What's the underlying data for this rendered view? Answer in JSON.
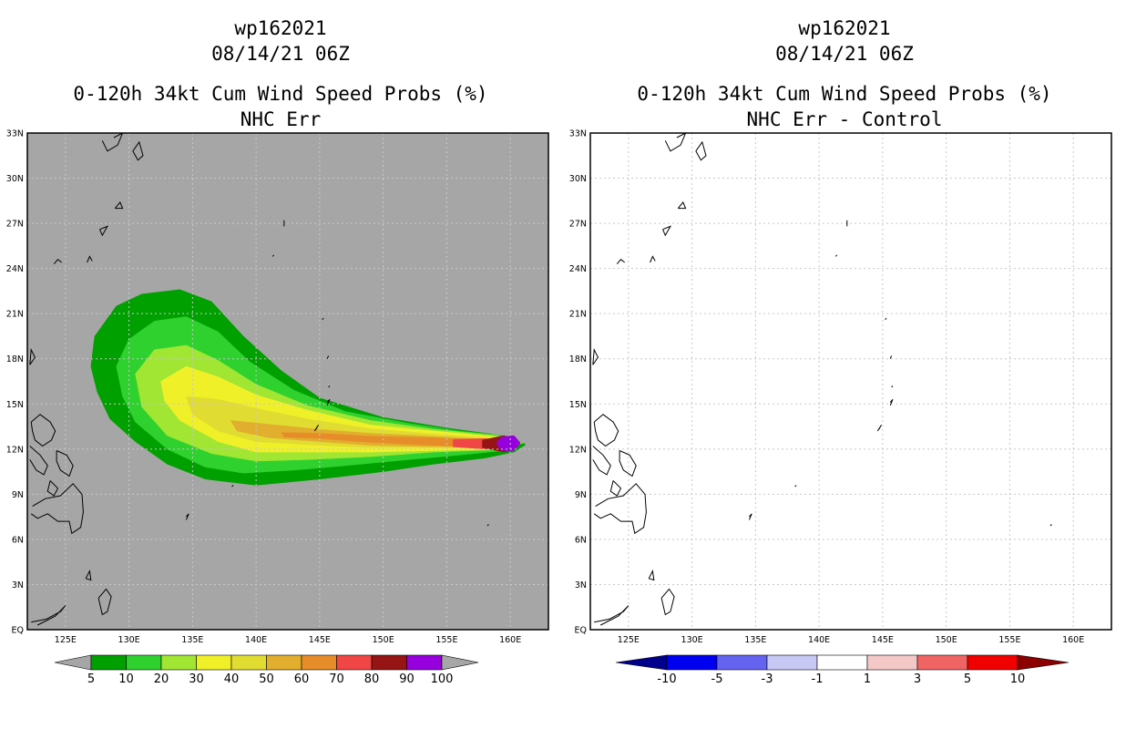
{
  "chart_data": [
    {
      "type": "contour-map",
      "title_lines": [
        "wp162021",
        "08/14/21 06Z",
        "0-120h 34kt Cum Wind Speed Probs (%)",
        "NHC Err"
      ],
      "x_ticks": [
        "125E",
        "130E",
        "135E",
        "140E",
        "145E",
        "150E",
        "155E",
        "160E"
      ],
      "y_ticks": [
        "EQ",
        "3N",
        "6N",
        "9N",
        "12N",
        "15N",
        "18N",
        "21N",
        "24N",
        "27N",
        "30N",
        "33N"
      ],
      "lon_range": [
        122,
        163
      ],
      "lat_range": [
        0,
        33
      ],
      "background_color": "#a6a6a6",
      "colorbar": {
        "labels": [
          "5",
          "10",
          "20",
          "30",
          "40",
          "50",
          "60",
          "70",
          "80",
          "90",
          "100"
        ],
        "colors": [
          "#00a000",
          "#2fd12f",
          "#a0e632",
          "#f0f028",
          "#e1dc32",
          "#e1af2d",
          "#e68c28",
          "#f04646",
          "#961414",
          "#9600dc"
        ]
      },
      "contours": [
        {
          "level": "5",
          "color": "#00a000",
          "polygon": [
            [
              127,
              17.5
            ],
            [
              127.3,
              19.5
            ],
            [
              129,
              21.5
            ],
            [
              131,
              22.3
            ],
            [
              134,
              22.6
            ],
            [
              136.5,
              21.8
            ],
            [
              139,
              19.5
            ],
            [
              142,
              17.2
            ],
            [
              145,
              15.4
            ],
            [
              150,
              14.1
            ],
            [
              155,
              13.4
            ],
            [
              158.5,
              13.0
            ],
            [
              160.3,
              12.7
            ],
            [
              161.2,
              12.3
            ],
            [
              160.3,
              11.8
            ],
            [
              158,
              11.4
            ],
            [
              154,
              11.0
            ],
            [
              150,
              10.5
            ],
            [
              145,
              10.0
            ],
            [
              140,
              9.6
            ],
            [
              136,
              10.0
            ],
            [
              133,
              11.0
            ],
            [
              130.5,
              12.5
            ],
            [
              128.5,
              14.0
            ],
            [
              127.5,
              15.8
            ]
          ]
        },
        {
          "level": "10",
          "color": "#2fd12f",
          "polygon": [
            [
              129,
              17.5
            ],
            [
              130,
              19.3
            ],
            [
              132,
              20.5
            ],
            [
              134.5,
              20.8
            ],
            [
              137,
              19.8
            ],
            [
              139.5,
              17.8
            ],
            [
              143,
              15.9
            ],
            [
              147,
              14.5
            ],
            [
              152,
              13.7
            ],
            [
              156,
              13.2
            ],
            [
              159.5,
              12.9
            ],
            [
              161,
              12.4
            ],
            [
              159.5,
              11.9
            ],
            [
              156,
              11.6
            ],
            [
              152,
              11.3
            ],
            [
              147,
              10.9
            ],
            [
              143,
              10.6
            ],
            [
              139,
              10.4
            ],
            [
              136,
              10.8
            ],
            [
              133,
              12.0
            ],
            [
              130.5,
              13.8
            ],
            [
              129.5,
              15.5
            ]
          ]
        },
        {
          "level": "20",
          "color": "#a0e632",
          "polygon": [
            [
              130.5,
              17.0
            ],
            [
              132,
              18.6
            ],
            [
              134.5,
              18.9
            ],
            [
              137,
              17.9
            ],
            [
              140,
              16.3
            ],
            [
              144,
              14.9
            ],
            [
              149,
              13.9
            ],
            [
              154,
              13.3
            ],
            [
              159,
              12.9
            ],
            [
              161,
              12.4
            ],
            [
              159,
              11.95
            ],
            [
              154,
              11.8
            ],
            [
              149,
              11.5
            ],
            [
              144,
              11.3
            ],
            [
              140,
              11.2
            ],
            [
              136.5,
              11.7
            ],
            [
              133,
              12.9
            ],
            [
              131,
              14.8
            ]
          ]
        },
        {
          "level": "30",
          "color": "#f0f028",
          "polygon": [
            [
              132.5,
              16.5
            ],
            [
              134.5,
              17.5
            ],
            [
              137,
              16.8
            ],
            [
              140,
              15.6
            ],
            [
              144,
              14.6
            ],
            [
              149,
              13.6
            ],
            [
              154,
              13.2
            ],
            [
              159,
              12.8
            ],
            [
              160.8,
              12.35
            ],
            [
              159,
              12.0
            ],
            [
              154,
              11.9
            ],
            [
              149,
              11.8
            ],
            [
              144,
              11.8
            ],
            [
              140,
              11.8
            ],
            [
              137,
              12.5
            ],
            [
              134,
              13.9
            ],
            [
              132.8,
              15.2
            ]
          ]
        },
        {
          "level": "40",
          "color": "#e1dc32",
          "polygon": [
            [
              134.5,
              15.5
            ],
            [
              137,
              15.3
            ],
            [
              140,
              14.7
            ],
            [
              144,
              14.0
            ],
            [
              149,
              13.35
            ],
            [
              154,
              13.0
            ],
            [
              159,
              12.7
            ],
            [
              160.6,
              12.35
            ],
            [
              159,
              12.05
            ],
            [
              154,
              12.1
            ],
            [
              149,
              12.1
            ],
            [
              144,
              12.3
            ],
            [
              140,
              12.5
            ],
            [
              137,
              13.2
            ],
            [
              135,
              14.3
            ]
          ]
        },
        {
          "level": "50",
          "color": "#e1af2d",
          "polygon": [
            [
              138,
              13.9
            ],
            [
              141,
              13.65
            ],
            [
              145,
              13.3
            ],
            [
              149,
              13.05
            ],
            [
              154,
              12.85
            ],
            [
              159,
              12.6
            ],
            [
              160.5,
              12.35
            ],
            [
              159,
              12.1
            ],
            [
              154,
              12.15
            ],
            [
              149,
              12.25
            ],
            [
              145,
              12.5
            ],
            [
              141,
              12.75
            ],
            [
              138.5,
              13.2
            ]
          ]
        },
        {
          "level": "60",
          "color": "#e68c28",
          "polygon": [
            [
              142,
              13.1
            ],
            [
              145,
              13.05
            ],
            [
              149,
              12.85
            ],
            [
              154,
              12.75
            ],
            [
              158,
              12.55
            ],
            [
              160.3,
              12.35
            ],
            [
              158,
              12.15
            ],
            [
              154,
              12.25
            ],
            [
              149,
              12.45
            ],
            [
              145,
              12.7
            ],
            [
              142.2,
              12.8
            ]
          ]
        },
        {
          "level": "70",
          "color": "#f04646",
          "polygon": [
            [
              155.5,
              12.65
            ],
            [
              158,
              12.7
            ],
            [
              160.2,
              12.55
            ],
            [
              160.6,
              12.35
            ],
            [
              160.2,
              12.1
            ],
            [
              158,
              12.0
            ],
            [
              155.5,
              12.15
            ]
          ]
        },
        {
          "level": "80",
          "color": "#961414",
          "polygon": [
            [
              157.8,
              12.6
            ],
            [
              159.5,
              12.9
            ],
            [
              160.5,
              12.6
            ],
            [
              160.7,
              12.35
            ],
            [
              160.4,
              12.0
            ],
            [
              159.5,
              11.8
            ],
            [
              157.8,
              12.1
            ]
          ]
        },
        {
          "level": "90",
          "color": "#9600dc",
          "polygon": [
            [
              158.9,
              12.4
            ],
            [
              159.3,
              12.8
            ],
            [
              160.3,
              12.9
            ],
            [
              160.8,
              12.4
            ],
            [
              160.3,
              11.9
            ],
            [
              159.3,
              11.9
            ]
          ]
        }
      ]
    },
    {
      "type": "contour-map",
      "title_lines": [
        "wp162021",
        "08/14/21 06Z",
        "0-120h 34kt Cum Wind Speed Probs (%)",
        "NHC Err - Control"
      ],
      "x_ticks": [
        "125E",
        "130E",
        "135E",
        "140E",
        "145E",
        "150E",
        "155E",
        "160E"
      ],
      "y_ticks": [
        "EQ",
        "3N",
        "6N",
        "9N",
        "12N",
        "15N",
        "18N",
        "21N",
        "24N",
        "27N",
        "30N",
        "33N"
      ],
      "lon_range": [
        122,
        163
      ],
      "lat_range": [
        0,
        33
      ],
      "background_color": "#ffffff",
      "colorbar": {
        "labels": [
          "-10",
          "-5",
          "-3",
          "-1",
          "1",
          "3",
          "5",
          "10"
        ],
        "colors": [
          "#00008c",
          "#0000f0",
          "#6464f0",
          "#c8c8f5",
          "#ffffff",
          "#f5c8c8",
          "#f06464",
          "#f00000",
          "#8c0000"
        ]
      },
      "contours": []
    }
  ]
}
